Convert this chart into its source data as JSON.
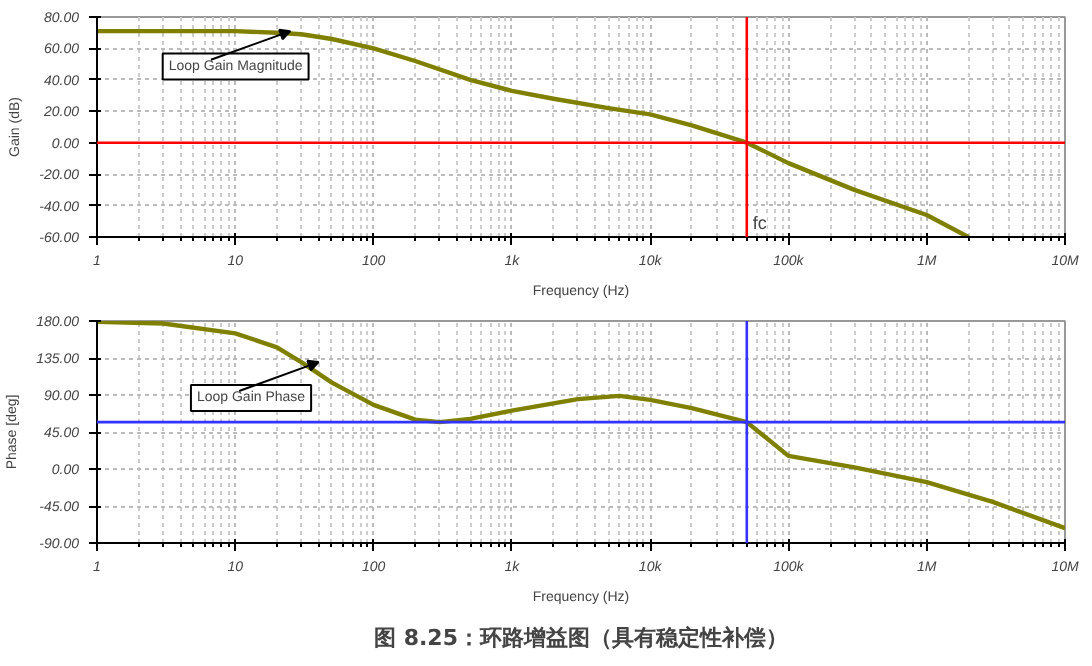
{
  "chart_data": [
    {
      "type": "line",
      "xlabel": "Frequency (Hz)",
      "ylabel": "Gain (dB)",
      "log": "x",
      "grid": true,
      "marker": "none",
      "line_style": "solid",
      "x": [
        1,
        10,
        20,
        30,
        50,
        100,
        200,
        500,
        1000,
        2000,
        5000,
        10000,
        20000,
        50000,
        100000,
        300000,
        1000000,
        2000000
      ],
      "series": [
        {
          "color": "#808000",
          "values": [
            71,
            71,
            70,
            69,
            66,
            60,
            52,
            40,
            33,
            28,
            22,
            18,
            11,
            0,
            -13,
            -30,
            -46,
            -60
          ]
        }
      ],
      "xlim": [
        1,
        10000000
      ],
      "xticks": [
        1,
        10,
        100,
        {
          "value": 1000,
          "label": "1k"
        },
        {
          "value": 10000,
          "label": "10k"
        },
        {
          "value": 100000,
          "label": "100k"
        },
        {
          "value": 1000000,
          "label": "1M"
        },
        {
          "value": 10000000,
          "label": "10M"
        }
      ],
      "ylim": [
        -60,
        80
      ],
      "yticks": [
        {
          "value": -60,
          "label": "-60.00"
        },
        {
          "value": -40,
          "label": "-40.00"
        },
        {
          "value": -20,
          "label": "-20.00"
        },
        {
          "value": 0,
          "label": "0.00"
        },
        {
          "value": 20,
          "label": "20.00"
        },
        {
          "value": 40,
          "label": "40.00"
        },
        {
          "value": 60,
          "label": "60.00"
        },
        {
          "value": 80,
          "label": "80.00"
        }
      ],
      "ref_lines": [
        {
          "axis": "y",
          "value": 0,
          "color": "#ff0000"
        },
        {
          "axis": "x",
          "value": 50000,
          "label": "fc",
          "color": "#ff0000"
        }
      ],
      "annotations": [
        {
          "text": "Loop Gain Magnitude",
          "x": 25,
          "y": 71
        }
      ]
    },
    {
      "type": "line",
      "xlabel": "Frequency (Hz)",
      "ylabel": "Phase [deg]",
      "log": "x",
      "grid": true,
      "marker": "none",
      "line_style": "solid",
      "x": [
        1,
        3,
        10,
        20,
        30,
        50,
        100,
        200,
        300,
        500,
        1000,
        3000,
        6000,
        10000,
        20000,
        50000,
        100000,
        300000,
        1000000,
        3000000,
        10000000
      ],
      "series": [
        {
          "color": "#808000",
          "values": [
            179,
            177,
            165,
            148,
            130,
            105,
            78,
            60,
            57,
            61,
            71,
            85,
            89,
            84,
            74,
            57,
            16,
            2,
            -16,
            -40,
            -72
          ]
        }
      ],
      "xlim": [
        1,
        10000000
      ],
      "xticks": [
        1,
        10,
        100,
        {
          "value": 1000,
          "label": "1k"
        },
        {
          "value": 10000,
          "label": "10k"
        },
        {
          "value": 100000,
          "label": "100k"
        },
        {
          "value": 1000000,
          "label": "1M"
        },
        {
          "value": 10000000,
          "label": "10M"
        }
      ],
      "ylim": [
        -90,
        180
      ],
      "yticks": [
        {
          "value": -90,
          "label": "-90.00"
        },
        {
          "value": -45,
          "label": "-45.00"
        },
        {
          "value": 0,
          "label": "0.00"
        },
        {
          "value": 45,
          "label": "45.00"
        },
        {
          "value": 90,
          "label": "90.00"
        },
        {
          "value": 135,
          "label": "135.00"
        },
        {
          "value": 180,
          "label": "180.00"
        }
      ],
      "ref_lines": [
        {
          "axis": "y",
          "value": 57,
          "color": "#3333ff"
        },
        {
          "axis": "x",
          "value": 50000,
          "color": "#3333ff"
        }
      ],
      "annotations": [
        {
          "text": "Loop Gain Phase",
          "x": 40,
          "y": 130
        },
        "图 8.25：环路增益图（具有稳定性补偿）"
      ]
    }
  ]
}
